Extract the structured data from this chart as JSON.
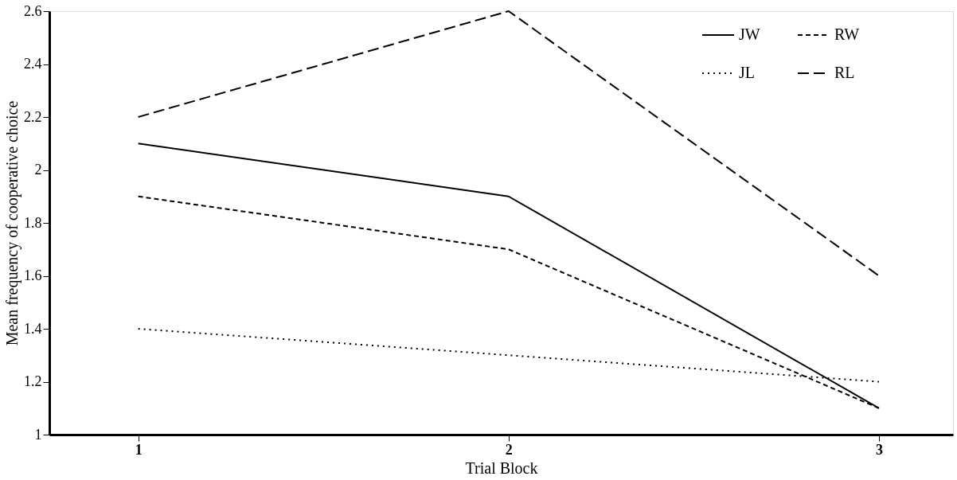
{
  "chart_data": {
    "type": "line",
    "xlabel": "Trial Block",
    "ylabel": "Mean frequency of cooperative choice",
    "x": [
      1,
      2,
      3
    ],
    "series": [
      {
        "name": "JW",
        "color": "#000000",
        "line_style": "solid",
        "values": [
          2.1,
          1.9,
          1.1
        ]
      },
      {
        "name": "RW",
        "color": "#000000",
        "line_style": "dashed",
        "values": [
          1.9,
          1.7,
          1.1
        ]
      },
      {
        "name": "JL",
        "color": "#000000",
        "line_style": "dotted",
        "values": [
          1.4,
          1.3,
          1.2
        ]
      },
      {
        "name": "RL",
        "color": "#000000",
        "line_style": "dashed",
        "values": [
          2.2,
          2.6,
          1.6
        ]
      }
    ],
    "xlim": [
      0.76,
      3.2
    ],
    "xticks": [
      1,
      2,
      3
    ],
    "ylim": [
      1,
      2.6
    ],
    "yticks": [
      {
        "value": 1,
        "label": "1"
      },
      1.2,
      1.4,
      1.6,
      1.8,
      {
        "value": 2,
        "label": "2"
      },
      2.2,
      2.4,
      2.6
    ],
    "grid": false,
    "legend": "top right",
    "marker": "none"
  }
}
